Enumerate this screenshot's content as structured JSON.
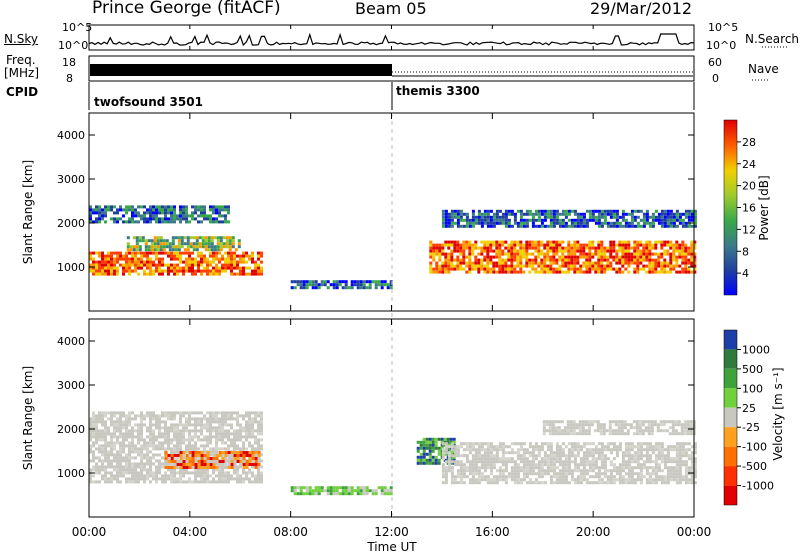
{
  "header": {
    "station": "Prince George (fitACF)",
    "beam": "Beam 05",
    "date": "29/Mar/2012"
  },
  "top_panel": {
    "left_label": "N.Sky",
    "right_label": "N.Search",
    "left_ticks": [
      "10^5",
      "10^0"
    ],
    "right_ticks": [
      "10^5",
      "10^0"
    ]
  },
  "freq_panel": {
    "label_line1": "Freq.",
    "label_line2": "[MHz]",
    "right_label": "Nave",
    "left_ticks": [
      "18",
      "8"
    ],
    "right_ticks": [
      "60",
      "0"
    ]
  },
  "cpid": {
    "label": "CPID",
    "modes": [
      {
        "name": "twofsound 3501",
        "start_hour": 0,
        "end_hour": 12
      },
      {
        "name": "themis 3300",
        "start_hour": 12,
        "end_hour": 24
      }
    ]
  },
  "x_axis": {
    "label": "Time UT",
    "ticks": [
      "00:00",
      "04:00",
      "08:00",
      "12:00",
      "16:00",
      "20:00",
      "00:00"
    ]
  },
  "chart_data": [
    {
      "type": "heatmap",
      "panel": "power",
      "ylabel": "Slant Range [km]",
      "yticks": [
        "1000",
        "2000",
        "3000",
        "4000"
      ],
      "ylim": [
        0,
        4500
      ],
      "xlim_hours": [
        0,
        24
      ],
      "colorbar_label": "Power [dB]",
      "colorbar_ticks": [
        "4",
        "8",
        "12",
        "16",
        "20",
        "24",
        "28"
      ],
      "colorbar_colors": [
        "#0000ff",
        "#1f3fa0",
        "#3c7a8a",
        "#37a84a",
        "#9ecb2e",
        "#f0d000",
        "#ff9800",
        "#ff4000",
        "#e00000"
      ],
      "features": [
        {
          "t0": 0.0,
          "t1": 6.8,
          "r0": 850,
          "r1": 1350,
          "level": "high"
        },
        {
          "t0": 1.5,
          "t1": 6.0,
          "r0": 1400,
          "r1": 1700,
          "level": "medium"
        },
        {
          "t0": 0.0,
          "t1": 5.5,
          "r0": 2000,
          "r1": 2400,
          "level": "low"
        },
        {
          "t0": 8.0,
          "t1": 12.0,
          "r0": 500,
          "r1": 700,
          "level": "low"
        },
        {
          "t0": 13.5,
          "t1": 24.0,
          "r0": 900,
          "r1": 1600,
          "level": "high"
        },
        {
          "t0": 14.0,
          "t1": 24.0,
          "r0": 1900,
          "r1": 2300,
          "level": "low"
        }
      ]
    },
    {
      "type": "heatmap",
      "panel": "velocity",
      "ylabel": "Slant Range [km]",
      "yticks": [
        "1000",
        "2000",
        "3000",
        "4000"
      ],
      "ylim": [
        0,
        4500
      ],
      "xlim_hours": [
        0,
        24
      ],
      "colorbar_label": "Velocity [m s⁻¹]",
      "colorbar_ticks": [
        "1000",
        "500",
        "100",
        "25",
        "-25",
        "-100",
        "-500",
        "-1000"
      ],
      "colorbar_colors": [
        "#1c3fa8",
        "#2f7a3c",
        "#3ea33a",
        "#70d13c",
        "#c8c8c0",
        "#ffa020",
        "#ff7000",
        "#ff3000",
        "#e00000"
      ],
      "features": [
        {
          "t0": 0.0,
          "t1": 6.8,
          "r0": 800,
          "r1": 2400,
          "level": "ground"
        },
        {
          "t0": 3.0,
          "t1": 6.8,
          "r0": 1100,
          "r1": 1500,
          "level": "negative"
        },
        {
          "t0": 8.0,
          "t1": 12.0,
          "r0": 500,
          "r1": 700,
          "level": "positive"
        },
        {
          "t0": 13.0,
          "t1": 14.5,
          "r0": 1200,
          "r1": 1800,
          "level": "strong_positive"
        },
        {
          "t0": 14.0,
          "t1": 24.0,
          "r0": 800,
          "r1": 1700,
          "level": "ground"
        },
        {
          "t0": 18.0,
          "t1": 24.0,
          "r0": 1900,
          "r1": 2200,
          "level": "ground"
        }
      ]
    }
  ],
  "colors": {
    "ground": "#c8c8c0",
    "axis": "#000000"
  }
}
